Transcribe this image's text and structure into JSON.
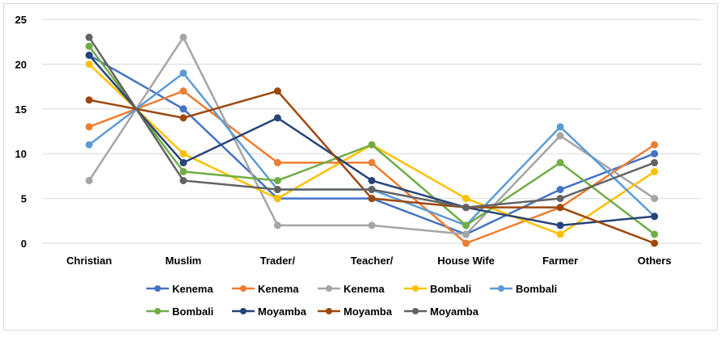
{
  "chart_data": {
    "type": "line",
    "title": "",
    "xlabel": "",
    "ylabel": "",
    "categories": [
      "Christian",
      "Muslim",
      "Trader/",
      "Teacher/",
      "House Wife",
      "Farmer",
      "Others"
    ],
    "ylim": [
      0,
      25
    ],
    "yticks": [
      0,
      5,
      10,
      15,
      20,
      25
    ],
    "grid": true,
    "legend_position": "bottom",
    "series": [
      {
        "name": "Kenema",
        "color": "#4472c4",
        "values": [
          21,
          15,
          5,
          5,
          1,
          6,
          10
        ]
      },
      {
        "name": "Kenema",
        "color": "#ed7d31",
        "values": [
          13,
          17,
          9,
          9,
          0,
          4,
          11
        ]
      },
      {
        "name": "Kenema",
        "color": "#a5a5a5",
        "values": [
          7,
          23,
          2,
          2,
          1,
          12,
          5
        ]
      },
      {
        "name": "Bombali",
        "color": "#ffc000",
        "values": [
          20,
          10,
          5,
          11,
          5,
          1,
          8
        ]
      },
      {
        "name": "Bombali",
        "color": "#5b9bd5",
        "values": [
          11,
          19,
          6,
          6,
          2,
          13,
          3
        ]
      },
      {
        "name": "Bombali",
        "color": "#70ad47",
        "values": [
          22,
          8,
          7,
          11,
          2,
          9,
          1
        ]
      },
      {
        "name": "Moyamba",
        "color": "#264478",
        "values": [
          21,
          9,
          14,
          7,
          4,
          2,
          3
        ]
      },
      {
        "name": "Moyamba",
        "color": "#9e480e",
        "values": [
          16,
          14,
          17,
          5,
          4,
          4,
          0
        ]
      },
      {
        "name": "Moyamba",
        "color": "#636363",
        "values": [
          23,
          7,
          6,
          6,
          4,
          5,
          9
        ]
      }
    ]
  }
}
